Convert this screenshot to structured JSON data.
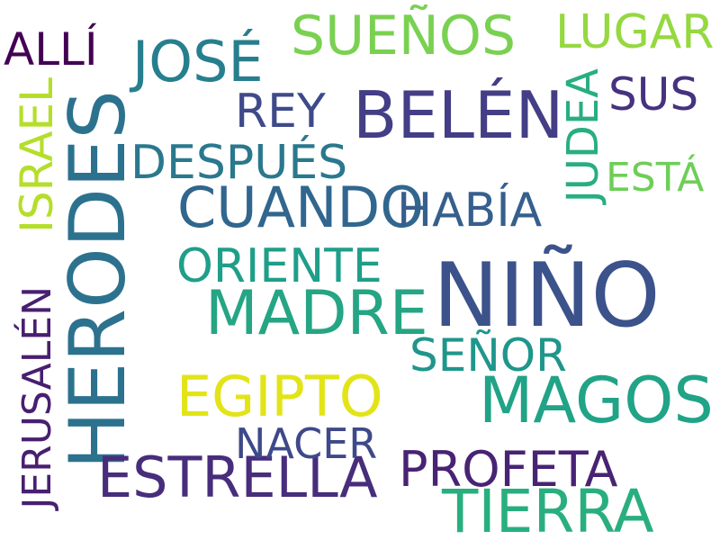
{
  "words": [
    {
      "text": "NIÑO",
      "color": "#3b528b"
    },
    {
      "text": "HERODES",
      "color": "#2c728e"
    },
    {
      "text": "BELÉN",
      "color": "#433e85"
    },
    {
      "text": "MAGOS",
      "color": "#20a386"
    },
    {
      "text": "MADRE",
      "color": "#25a584"
    },
    {
      "text": "TIERRA",
      "color": "#29af7f"
    },
    {
      "text": "ESTRELLA",
      "color": "#472d7b"
    },
    {
      "text": "EGIPTO",
      "color": "#e2e418"
    },
    {
      "text": "CUANDO",
      "color": "#31668e"
    },
    {
      "text": "JOSÉ",
      "color": "#277f8e"
    },
    {
      "text": "SUEÑOS",
      "color": "#7ad151"
    },
    {
      "text": "LUGAR",
      "color": "#95d840"
    },
    {
      "text": "ALLÍ",
      "color": "#440154"
    },
    {
      "text": "SUS",
      "color": "#46327e"
    },
    {
      "text": "JUDEA",
      "color": "#28ae80"
    },
    {
      "text": "ESTÁ",
      "color": "#6ece58"
    },
    {
      "text": "REY",
      "color": "#3e4a89"
    },
    {
      "text": "ISRAEL",
      "color": "#b5de2b"
    },
    {
      "text": "DESPUÉS",
      "color": "#2a788e"
    },
    {
      "text": "HABÍA",
      "color": "#355f8d"
    },
    {
      "text": "ORIENTE",
      "color": "#1f9e89"
    },
    {
      "text": "SEÑOR",
      "color": "#1f968b"
    },
    {
      "text": "PROFETA",
      "color": "#482374"
    },
    {
      "text": "NACER",
      "color": "#3e4989"
    },
    {
      "text": "JERUSALÉN",
      "color": "#481f70"
    }
  ]
}
